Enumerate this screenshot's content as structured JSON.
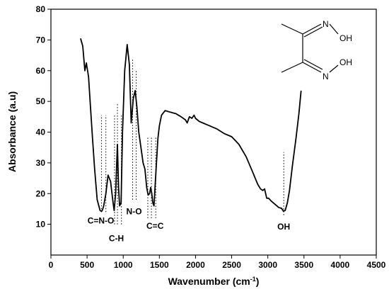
{
  "chart_data": {
    "type": "line",
    "xlabel": "Wavenumber (cm",
    "xlabel_sup": "-1",
    "xlabel_close": ")",
    "ylabel": "Absorbance (a.u)",
    "xlim": [
      0,
      4500
    ],
    "ylim": [
      0,
      80
    ],
    "xticks": [
      0,
      500,
      1000,
      1500,
      2000,
      2500,
      3000,
      3500,
      4000,
      4500
    ],
    "yticks": [
      10,
      20,
      30,
      40,
      50,
      60,
      70,
      80
    ],
    "grid": false,
    "line_color": "#000000",
    "x": [
      410,
      440,
      470,
      490,
      520,
      545,
      575,
      605,
      640,
      680,
      700,
      715,
      730,
      760,
      790,
      825,
      860,
      875,
      895,
      920,
      935,
      950,
      970,
      990,
      1020,
      1055,
      1085,
      1110,
      1140,
      1165,
      1190,
      1215,
      1245,
      1275,
      1300,
      1325,
      1345,
      1365,
      1380,
      1395,
      1410,
      1425,
      1440,
      1460,
      1480,
      1500,
      1530,
      1580,
      1650,
      1730,
      1800,
      1860,
      1885,
      1915,
      1950,
      1980,
      2000,
      2050,
      2100,
      2200,
      2300,
      2400,
      2500,
      2600,
      2700,
      2800,
      2860,
      2900,
      2930,
      2955,
      2985,
      3010,
      3050,
      3100,
      3150,
      3190,
      3215,
      3240,
      3270,
      3300,
      3340,
      3390,
      3430,
      3460
    ],
    "y": [
      70.5,
      68,
      60,
      62.5,
      58,
      49,
      38,
      28,
      18,
      14.5,
      14.2,
      14.8,
      16,
      20,
      26,
      24,
      17,
      14.5,
      20,
      36,
      22,
      16,
      17,
      40,
      60,
      68.5,
      62,
      43,
      51,
      53.5,
      48,
      40,
      35,
      30,
      28,
      22,
      19.5,
      20,
      22,
      20,
      17,
      16,
      22,
      30,
      38,
      42,
      45.5,
      47,
      46.5,
      46,
      45,
      44,
      43,
      45,
      44.5,
      45.5,
      44.5,
      43.5,
      43,
      42,
      41,
      39.5,
      38.5,
      36,
      32,
      26.5,
      23,
      21.5,
      21,
      21.5,
      18.5,
      18.5,
      17.5,
      16.5,
      15.5,
      15.2,
      14.3,
      14.5,
      17,
      21,
      29,
      38,
      46,
      53.5
    ],
    "annotations": [
      {
        "label": "C=N-O",
        "x": 690,
        "y": 10.3,
        "lines": [
          {
            "x": 700,
            "y0": 14,
            "y1": 45.5
          },
          {
            "x": 760,
            "y0": 14,
            "y1": 45.5
          }
        ]
      },
      {
        "label": "C-H",
        "x": 905,
        "y": 4.5,
        "lines": [
          {
            "x": 880,
            "y0": 10,
            "y1": 45.5
          },
          {
            "x": 920,
            "y0": 10,
            "y1": 49.5
          },
          {
            "x": 975,
            "y0": 10,
            "y1": 45.5
          }
        ]
      },
      {
        "label": "N-O",
        "x": 1150,
        "y": 13.3,
        "lines": [
          {
            "x": 1130,
            "y0": 18,
            "y1": 64
          },
          {
            "x": 1180,
            "y0": 18,
            "y1": 60
          }
        ]
      },
      {
        "label": "C=C",
        "x": 1440,
        "y": 8.5,
        "lines": [
          {
            "x": 1340,
            "y0": 12,
            "y1": 38.5
          },
          {
            "x": 1390,
            "y0": 12,
            "y1": 38.5
          },
          {
            "x": 1450,
            "y0": 12,
            "y1": 38.5
          }
        ]
      },
      {
        "label": "OH",
        "x": 3220,
        "y": 8.3,
        "lines": [
          {
            "x": 3220,
            "y0": 13,
            "y1": 33.5
          }
        ]
      }
    ]
  },
  "molecule": {
    "label_top": "OH",
    "label_bottom": "OH",
    "n_top": "N",
    "n_bottom": "N"
  }
}
